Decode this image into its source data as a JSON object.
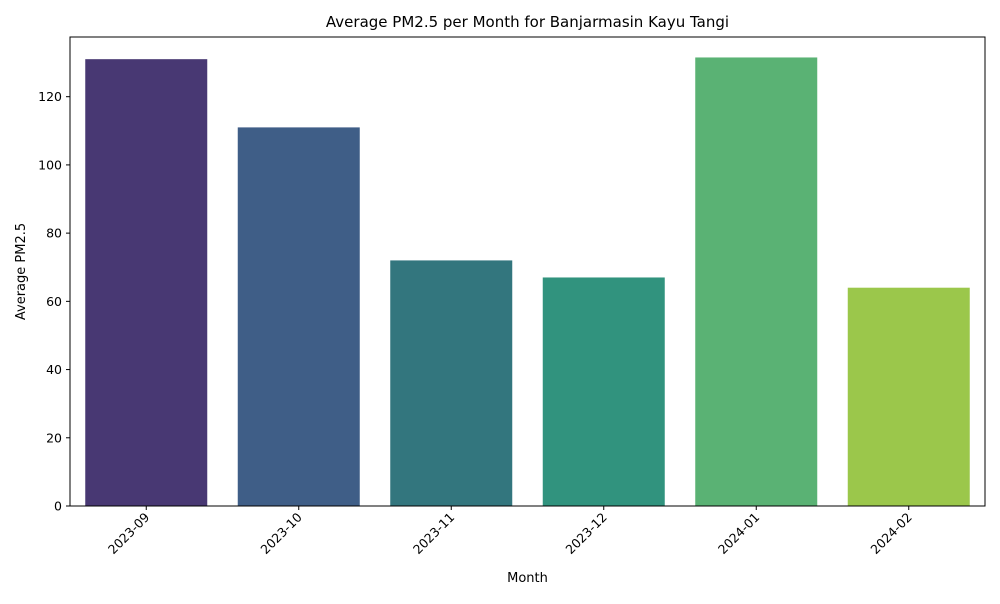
{
  "chart_data": {
    "type": "bar",
    "title": "Average PM2.5 per Month for Banjarmasin Kayu Tangi",
    "xlabel": "Month",
    "ylabel": "Average PM2.5",
    "categories": [
      "2023-09",
      "2023-10",
      "2023-11",
      "2023-12",
      "2024-01",
      "2024-02"
    ],
    "values": [
      131,
      111,
      72,
      67,
      131.5,
      64
    ],
    "colors": [
      "#483873",
      "#3f5e87",
      "#33767e",
      "#31937e",
      "#5ab274",
      "#9bc74b"
    ],
    "ylim": [
      0,
      137.5
    ],
    "yticks": [
      0,
      20,
      40,
      60,
      80,
      100,
      120
    ],
    "grid": false,
    "legend": "none"
  }
}
